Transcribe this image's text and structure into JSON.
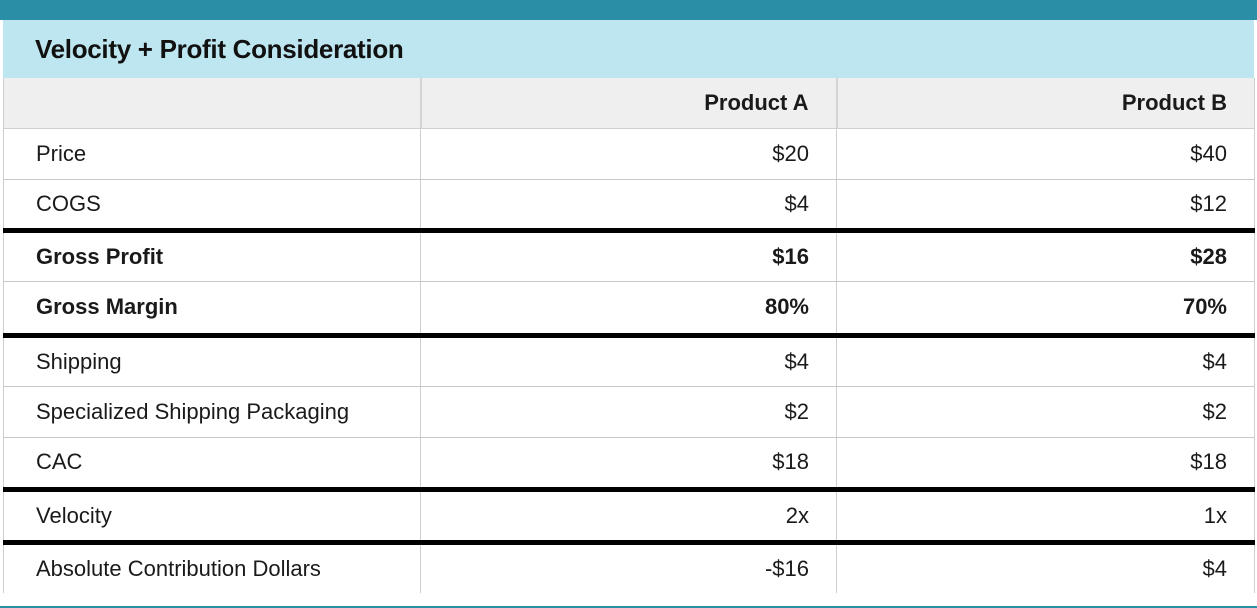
{
  "title": "Velocity + Profit Consideration",
  "columns": [
    "",
    "Product A",
    "Product B"
  ],
  "rows": [
    {
      "label": "Price",
      "a": "$20",
      "b": "$40"
    },
    {
      "label": "COGS",
      "a": "$4",
      "b": "$12"
    },
    {
      "label": "Gross Profit",
      "a": "$16",
      "b": "$28"
    },
    {
      "label": "Gross Margin",
      "a": "80%",
      "b": "70%"
    },
    {
      "label": "Shipping",
      "a": "$4",
      "b": "$4"
    },
    {
      "label": "Specialized Shipping Packaging",
      "a": "$2",
      "b": "$2"
    },
    {
      "label": "CAC",
      "a": "$18",
      "b": "$18"
    },
    {
      "label": "Velocity",
      "a": "2x",
      "b": "1x"
    },
    {
      "label": "Absolute Contribution Dollars",
      "a": "-$16",
      "b": "$4"
    }
  ],
  "colors": {
    "accent_bar": "#2a8fa6",
    "title_background": "#bde6f0",
    "header_background": "#efefef",
    "section_divider": "#000000"
  }
}
